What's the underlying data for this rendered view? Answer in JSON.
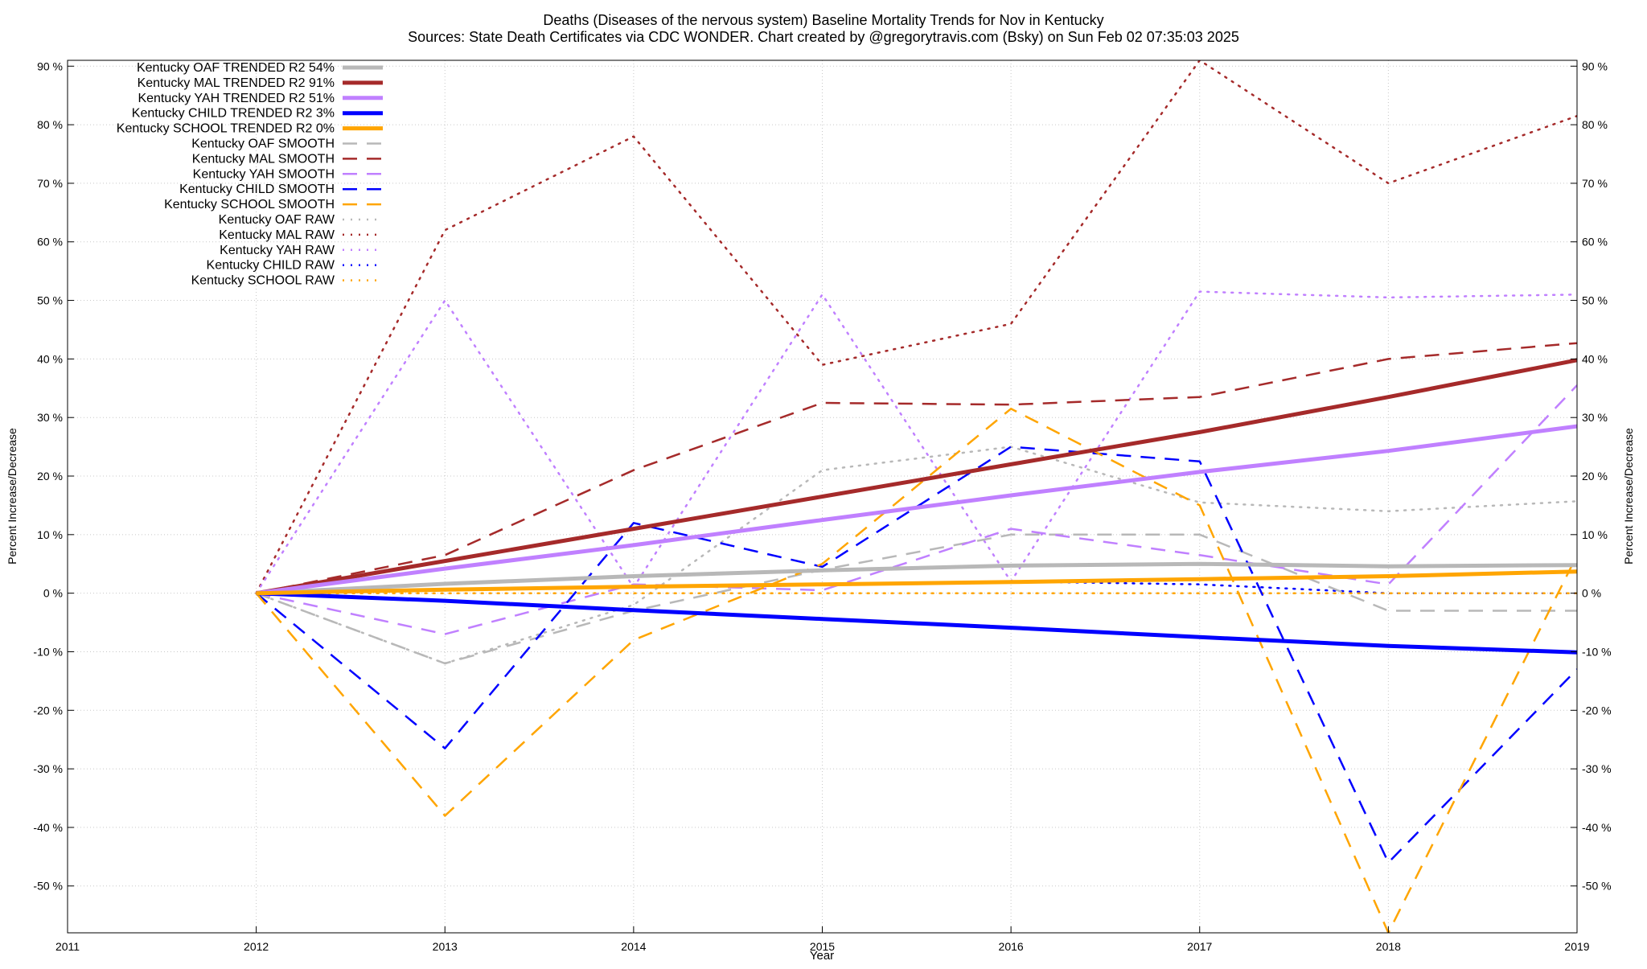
{
  "chart_data": {
    "type": "line",
    "title_line1": "Deaths (Diseases of the nervous system)  Baseline Mortality Trends for Nov in Kentucky",
    "title_line2": "Sources: State Death Certificates via CDC WONDER.               Chart created by @gregorytravis.com (Bsky) on Sun Feb 02 07:35:03 2025",
    "xlabel": "Year",
    "ylabel": "Percent Increase/Decrease",
    "xlim": [
      2011,
      2019
    ],
    "ylim": [
      -58,
      91
    ],
    "x_ticks": [
      "2011",
      "2012",
      "2013",
      "2014",
      "2015",
      "2016",
      "2017",
      "2018",
      "2019"
    ],
    "y_ticks": [
      {
        "value": 90,
        "label": "90 %"
      },
      {
        "value": 80,
        "label": "80 %"
      },
      {
        "value": 70,
        "label": "70 %"
      },
      {
        "value": 60,
        "label": "60 %"
      },
      {
        "value": 50,
        "label": "50 %"
      },
      {
        "value": 40,
        "label": "40 %"
      },
      {
        "value": 30,
        "label": "30 %"
      },
      {
        "value": 20,
        "label": "20 %"
      },
      {
        "value": 10,
        "label": "10 %"
      },
      {
        "value": 0,
        "label": "0 %"
      },
      {
        "value": -10,
        "label": "-10 %"
      },
      {
        "value": -20,
        "label": "-20 %"
      },
      {
        "value": -30,
        "label": "-30 %"
      },
      {
        "value": -40,
        "label": "-40 %"
      },
      {
        "value": -50,
        "label": "-50 %"
      }
    ],
    "grid": true,
    "legend_position": "top-left",
    "series": [
      {
        "name": "Kentucky OAF TRENDED R2  54%",
        "style": "solid",
        "color": "#b8b8b8",
        "x": [
          2012,
          2013,
          2014,
          2015,
          2016,
          2017,
          2018,
          2019
        ],
        "y": [
          0,
          1.6,
          2.9,
          3.9,
          4.7,
          5.0,
          4.6,
          4.8
        ]
      },
      {
        "name": "Kentucky MAL TRENDED R2  91%",
        "style": "solid",
        "color": "#a52a2a",
        "x": [
          2012,
          2013,
          2014,
          2015,
          2016,
          2017,
          2018,
          2019
        ],
        "y": [
          0,
          5.5,
          11,
          16.5,
          22,
          27.5,
          33.5,
          39.8
        ]
      },
      {
        "name": "Kentucky YAH TRENDED R2  51%",
        "style": "solid",
        "color": "#c080ff",
        "x": [
          2012,
          2013,
          2014,
          2015,
          2016,
          2017,
          2018,
          2019
        ],
        "y": [
          0,
          4.2,
          8.2,
          12.5,
          16.7,
          20.7,
          24.3,
          28.5
        ]
      },
      {
        "name": "Kentucky CHILD TRENDED R2   3%",
        "style": "solid",
        "color": "#0000ff",
        "x": [
          2012,
          2013,
          2014,
          2015,
          2016,
          2017,
          2018,
          2019
        ],
        "y": [
          0,
          -1.3,
          -2.9,
          -4.4,
          -5.9,
          -7.5,
          -9.0,
          -10.1
        ]
      },
      {
        "name": "Kentucky SCHOOL TRENDED R2   0%",
        "style": "solid",
        "color": "#ffa500",
        "x": [
          2012,
          2013,
          2014,
          2015,
          2016,
          2017,
          2018,
          2019
        ],
        "y": [
          0,
          0.6,
          1.1,
          1.5,
          1.9,
          2.4,
          2.9,
          3.7
        ]
      },
      {
        "name": "Kentucky OAF SMOOTH",
        "style": "dashed",
        "color": "#b8b8b8",
        "x": [
          2012,
          2013,
          2014,
          2015,
          2016,
          2017,
          2018,
          2019
        ],
        "y": [
          0,
          -12,
          -3,
          4,
          10,
          10,
          -3,
          -3
        ]
      },
      {
        "name": "Kentucky MAL SMOOTH",
        "style": "dashed",
        "color": "#a52a2a",
        "x": [
          2012,
          2013,
          2014,
          2015,
          2016,
          2017,
          2018,
          2019
        ],
        "y": [
          0,
          6.5,
          21,
          32.5,
          32.2,
          33.5,
          40,
          42.7
        ]
      },
      {
        "name": "Kentucky YAH SMOOTH",
        "style": "dashed",
        "color": "#c080ff",
        "x": [
          2012,
          2013,
          2014,
          2015,
          2016,
          2017,
          2018,
          2019
        ],
        "y": [
          0,
          -7,
          1.5,
          0.5,
          11,
          6.5,
          1.5,
          35.5
        ]
      },
      {
        "name": "Kentucky CHILD SMOOTH",
        "style": "dashed",
        "color": "#0000ff",
        "x": [
          2012,
          2013,
          2014,
          2015,
          2016,
          2017,
          2018,
          2019
        ],
        "y": [
          0,
          -26.5,
          12,
          4.5,
          25,
          22.5,
          -46,
          -13
        ]
      },
      {
        "name": "Kentucky SCHOOL SMOOTH",
        "style": "dashed",
        "color": "#ffa500",
        "x": [
          2012,
          2013,
          2014,
          2015,
          2016,
          2017,
          2018,
          2019
        ],
        "y": [
          0,
          -38,
          -8,
          5,
          31.5,
          15,
          -58,
          6.5
        ]
      },
      {
        "name": "Kentucky OAF RAW",
        "style": "dotted",
        "color": "#b8b8b8",
        "x": [
          2012,
          2013,
          2014,
          2015,
          2016,
          2017,
          2018,
          2019
        ],
        "y": [
          0,
          -12,
          -2,
          21,
          25,
          15.5,
          14,
          15.7
        ]
      },
      {
        "name": "Kentucky MAL RAW",
        "style": "dotted",
        "color": "#a52a2a",
        "x": [
          2012,
          2013,
          2014,
          2015,
          2016,
          2017,
          2018,
          2019
        ],
        "y": [
          0,
          62,
          78,
          39,
          46,
          91,
          70,
          81.5
        ]
      },
      {
        "name": "Kentucky YAH RAW",
        "style": "dotted",
        "color": "#c080ff",
        "x": [
          2012,
          2013,
          2014,
          2015,
          2016,
          2017,
          2018,
          2019
        ],
        "y": [
          0,
          50,
          1,
          51,
          2,
          51.5,
          50.5,
          51
        ]
      },
      {
        "name": "Kentucky CHILD RAW",
        "style": "dotted",
        "color": "#0000ff",
        "x": [
          2012,
          2013,
          2014,
          2015,
          2016,
          2017,
          2018,
          2019
        ],
        "y": [
          0,
          0.5,
          1,
          1.5,
          2,
          1.5,
          0,
          0
        ]
      },
      {
        "name": "Kentucky SCHOOL RAW",
        "style": "dotted",
        "color": "#ffa500",
        "x": [
          2012,
          2013,
          2014,
          2015,
          2016,
          2017,
          2018,
          2019
        ],
        "y": [
          0,
          0,
          0,
          0,
          0,
          0,
          0,
          0
        ]
      }
    ]
  }
}
